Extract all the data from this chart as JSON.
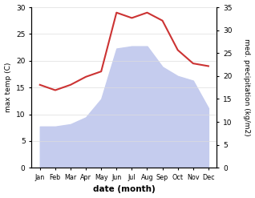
{
  "months": [
    "Jan",
    "Feb",
    "Mar",
    "Apr",
    "May",
    "Jun",
    "Jul",
    "Aug",
    "Sep",
    "Oct",
    "Nov",
    "Dec"
  ],
  "max_temp": [
    15.5,
    14.5,
    15.5,
    17.0,
    18.0,
    29.0,
    28.0,
    29.0,
    27.5,
    22.0,
    19.5,
    19.0
  ],
  "precipitation": [
    9.0,
    9.0,
    9.5,
    11.0,
    15.0,
    26.0,
    26.5,
    26.5,
    22.0,
    20.0,
    19.0,
    13.0
  ],
  "temp_color": "#cc3333",
  "precip_color": "#c5ccee",
  "background_color": "#ffffff",
  "ylabel_left": "max temp (C)",
  "ylabel_right": "med. precipitation (kg/m2)",
  "xlabel": "date (month)",
  "ylim_left": [
    0,
    30
  ],
  "ylim_right": [
    0,
    35
  ],
  "yticks_left": [
    0,
    5,
    10,
    15,
    20,
    25,
    30
  ],
  "yticks_right": [
    0,
    5,
    10,
    15,
    20,
    25,
    30,
    35
  ],
  "figwidth": 3.18,
  "figheight": 2.47,
  "dpi": 100
}
